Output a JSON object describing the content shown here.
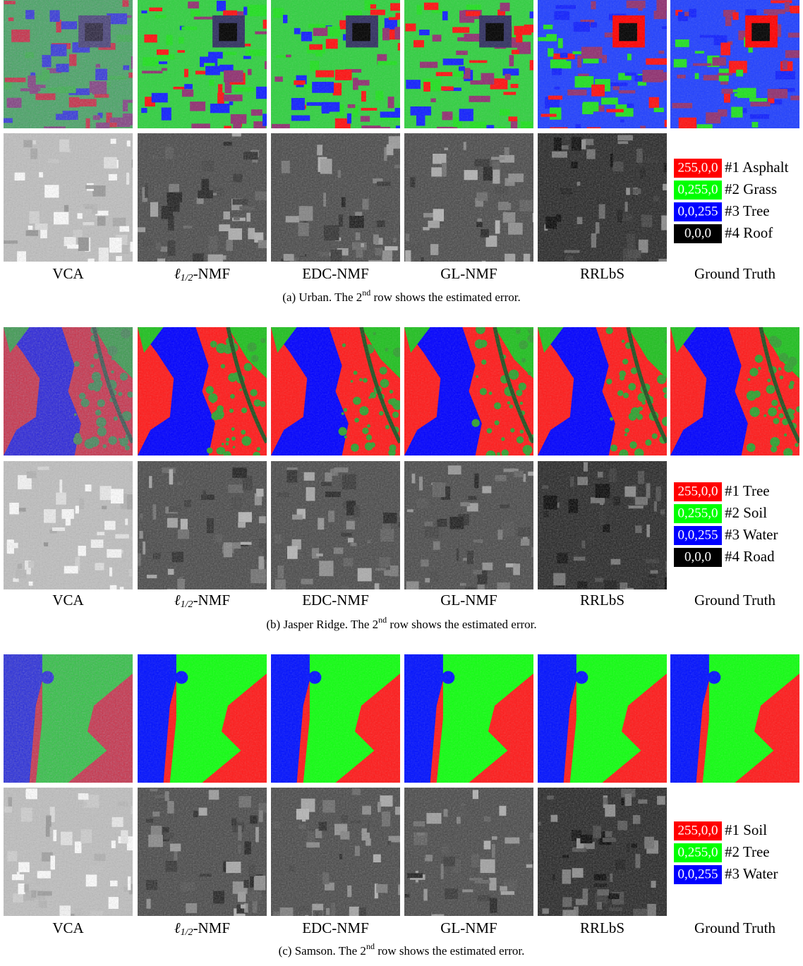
{
  "panels": [
    {
      "methods": [
        "VCA",
        {
          "main": "ℓ",
          "sub": "1/2",
          "tail": "-NMF"
        },
        "EDC-NMF",
        "GL-NMF",
        "RRLbS",
        "Ground Truth"
      ],
      "legend": [
        {
          "code": "255,0,0",
          "color": "#ff0000",
          "label": "#1 Asphalt"
        },
        {
          "code": "0,255,0",
          "color": "#00ff00",
          "label": "#2 Grass"
        },
        {
          "code": "0,0,255",
          "color": "#0000ff",
          "label": "#3 Tree"
        },
        {
          "code": "0,0,0",
          "color": "#000000",
          "label": "#4 Roof"
        }
      ],
      "caption": {
        "prefix": "(a) Urban. The 2",
        "sup": "nd",
        "suffix": " row shows the estimated error."
      }
    },
    {
      "methods": [
        "VCA",
        {
          "main": "ℓ",
          "sub": "1/2",
          "tail": "-NMF"
        },
        "EDC-NMF",
        "GL-NMF",
        "RRLbS",
        "Ground Truth"
      ],
      "legend": [
        {
          "code": "255,0,0",
          "color": "#ff0000",
          "label": "#1 Tree"
        },
        {
          "code": "0,255,0",
          "color": "#00ff00",
          "label": "#2 Soil"
        },
        {
          "code": "0,0,255",
          "color": "#0000ff",
          "label": "#3 Water"
        },
        {
          "code": "0,0,0",
          "color": "#000000",
          "label": "#4 Road"
        }
      ],
      "caption": {
        "prefix": "(b) Jasper Ridge. The 2",
        "sup": "nd",
        "suffix": " row shows the estimated error."
      }
    },
    {
      "methods": [
        "VCA",
        {
          "main": "ℓ",
          "sub": "1/2",
          "tail": "-NMF"
        },
        "EDC-NMF",
        "GL-NMF",
        "RRLbS",
        "Ground Truth"
      ],
      "legend": [
        {
          "code": "255,0,0",
          "color": "#ff0000",
          "label": "#1 Soil"
        },
        {
          "code": "0,255,0",
          "color": "#00ff00",
          "label": "#2 Tree"
        },
        {
          "code": "0,0,255",
          "color": "#0000ff",
          "label": "#3 Water"
        }
      ],
      "caption": {
        "prefix": "(c) Samson. The 2",
        "sup": "nd",
        "suffix": " row shows the estimated error."
      }
    }
  ]
}
